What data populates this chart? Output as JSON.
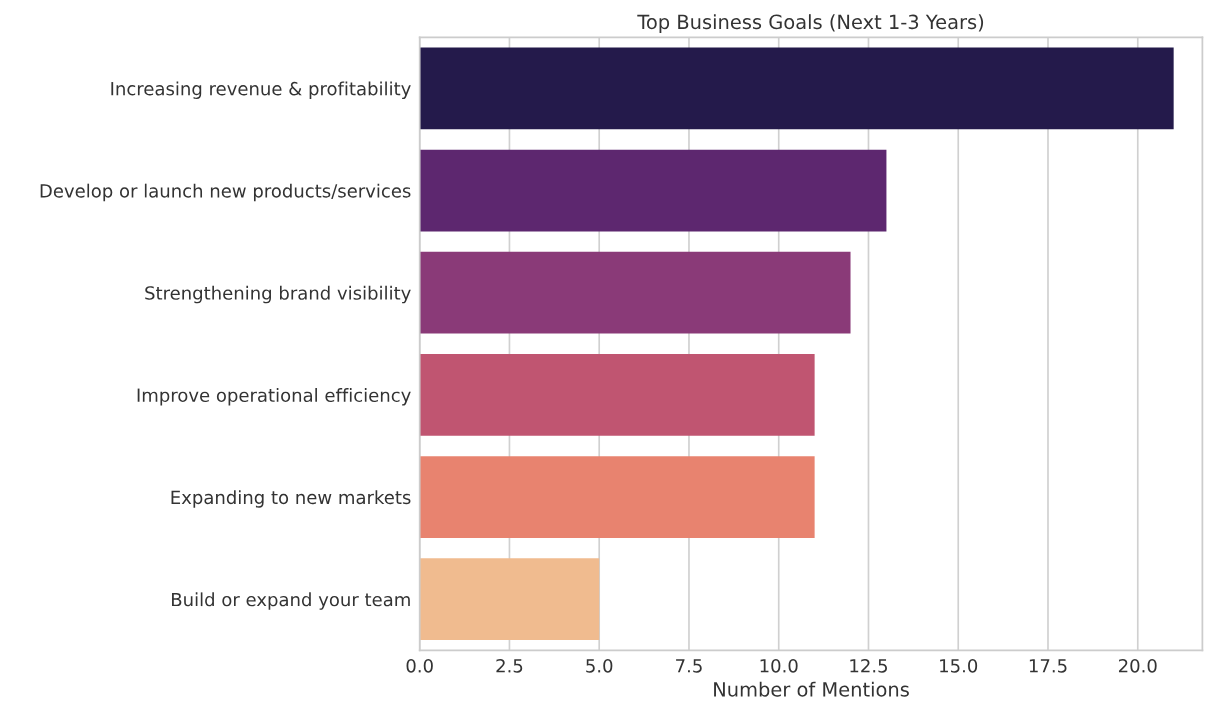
{
  "chart_data": {
    "type": "bar",
    "orientation": "horizontal",
    "title": "Top Business Goals (Next 1-3 Years)",
    "xlabel": "Number of Mentions",
    "categories": [
      "Increasing revenue & profitability",
      "Develop or launch new products/services",
      "Strengthening brand visibility",
      "Improve operational efficiency",
      "Expanding to new markets",
      "Build or expand your team"
    ],
    "values": [
      21,
      13,
      12,
      11,
      11,
      5
    ],
    "colors": [
      "#241a4b",
      "#5d276f",
      "#8a3a78",
      "#c05571",
      "#e8836f",
      "#f0bb8f"
    ],
    "xlim": [
      0,
      21.8
    ],
    "xticks": [
      {
        "value": 0,
        "label": "0.0"
      },
      {
        "value": 2.5,
        "label": "2.5"
      },
      {
        "value": 5,
        "label": "5.0"
      },
      {
        "value": 7.5,
        "label": "7.5"
      },
      {
        "value": 10,
        "label": "10.0"
      },
      {
        "value": 12.5,
        "label": "12.5"
      },
      {
        "value": 15,
        "label": "15.0"
      },
      {
        "value": 17.5,
        "label": "17.5"
      },
      {
        "value": 20,
        "label": "20.0"
      }
    ],
    "grid": "x"
  }
}
